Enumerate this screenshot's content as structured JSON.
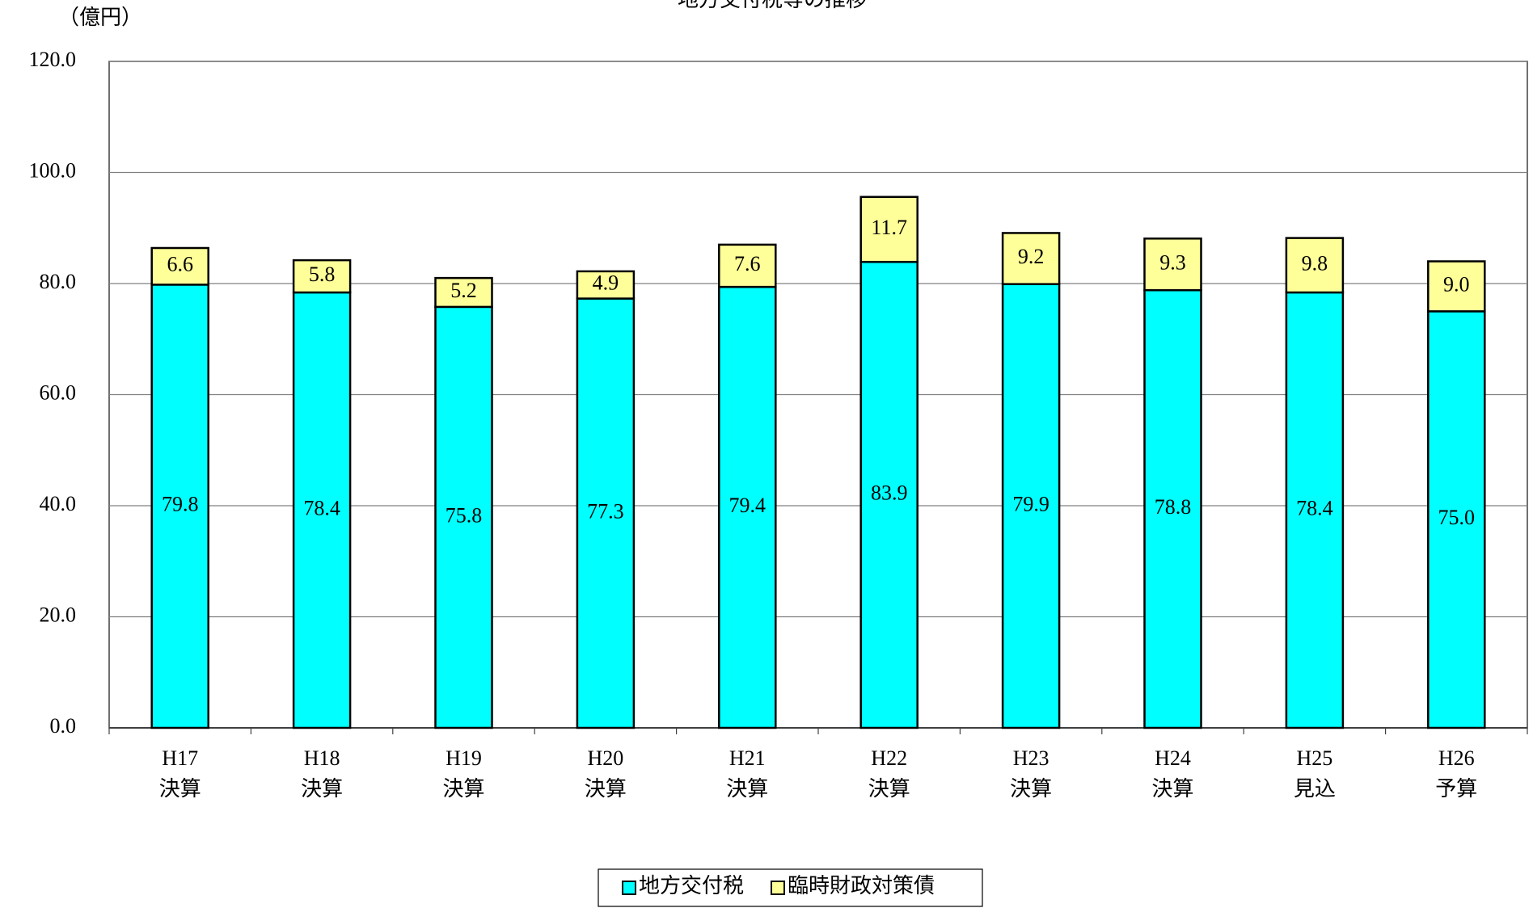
{
  "chart_data": {
    "type": "stacked_bar",
    "title": "地方交付税等の推移",
    "y_axis_label": "（億円）",
    "categories": [
      [
        "H17",
        "決算"
      ],
      [
        "H18",
        "決算"
      ],
      [
        "H19",
        "決算"
      ],
      [
        "H20",
        "決算"
      ],
      [
        "H21",
        "決算"
      ],
      [
        "H22",
        "決算"
      ],
      [
        "H23",
        "決算"
      ],
      [
        "H24",
        "決算"
      ],
      [
        "H25",
        "見込"
      ],
      [
        "H26",
        "予算"
      ]
    ],
    "series": [
      {
        "name": "地方交付税",
        "color": "#00ffff",
        "values": [
          79.8,
          78.4,
          75.8,
          77.3,
          79.4,
          83.9,
          79.9,
          78.8,
          78.4,
          75
        ],
        "value_labels": [
          "79.8",
          "78.4",
          "75.8",
          "77.3",
          "79.4",
          "83.9",
          "79.9",
          "78.8",
          "78.4",
          "75.0"
        ]
      },
      {
        "name": "臨時財政対策債",
        "color": "#ffff99",
        "values": [
          6.6,
          5.8,
          5.2,
          4.9,
          7.6,
          11.7,
          9.2,
          9.3,
          9.8,
          9
        ],
        "value_labels": [
          "6.6",
          "5.8",
          "5.2",
          "4.9",
          "7.6",
          "11.7",
          "9.2",
          "9.3",
          "9.8",
          "9.0"
        ]
      }
    ],
    "ylim": [
      0,
      120
    ],
    "yticks": [
      {
        "value": 0,
        "label": "0.0"
      },
      {
        "value": 20,
        "label": "20.0"
      },
      {
        "value": 40,
        "label": "40.0"
      },
      {
        "value": 60,
        "label": "60.0"
      },
      {
        "value": 80,
        "label": "80.0"
      },
      {
        "value": 100,
        "label": "100.0"
      },
      {
        "value": 120,
        "label": "120.0"
      }
    ],
    "grid": true,
    "legend": "bottom"
  }
}
